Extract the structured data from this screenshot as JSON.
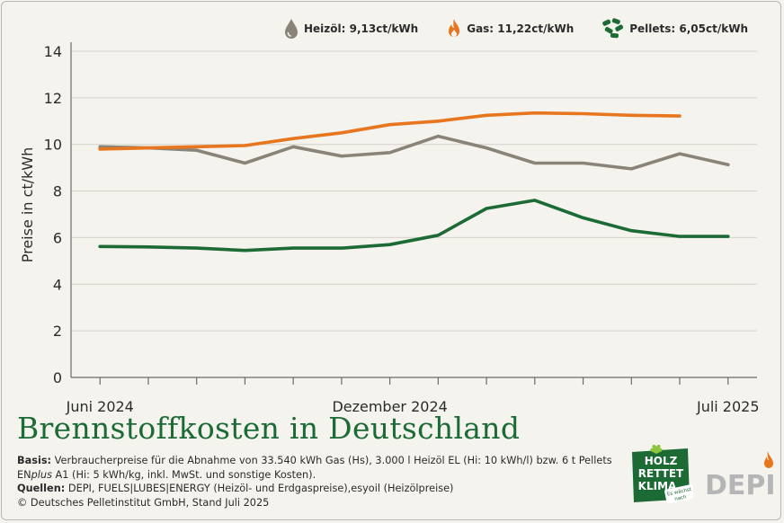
{
  "legend": [
    {
      "label": "Heizöl: 9,13ct/kWh",
      "icon": "oil-drop-icon",
      "color": "#8a8478"
    },
    {
      "label": "Gas: 11,22ct/kWh",
      "icon": "flame-icon",
      "color": "#e8761f"
    },
    {
      "label": "Pellets: 6,05ct/kWh",
      "icon": "pellets-icon",
      "color": "#1c6b35"
    }
  ],
  "chart_data": {
    "type": "line",
    "ylabel": "Preise in ct/kWh",
    "xlabel": "",
    "ylim": [
      0,
      14
    ],
    "yticks": [
      0,
      2,
      4,
      6,
      8,
      10,
      12,
      14
    ],
    "x_range": [
      -0.6,
      13.6
    ],
    "x_ticks": [
      0,
      1,
      2,
      3,
      4,
      5,
      6,
      7,
      8,
      9,
      10,
      11,
      12,
      13
    ],
    "x_tick_labels": [
      {
        "x": 0,
        "label": "Juni 2024"
      },
      {
        "x": 6,
        "label": "Dezember 2024"
      },
      {
        "x": 13,
        "label": "Juli 2025"
      }
    ],
    "grid": true,
    "series": [
      {
        "name": "Heizöl",
        "color": "#8a8478",
        "x": [
          0,
          1,
          2,
          3,
          4,
          5,
          6,
          7,
          8,
          9,
          10,
          11,
          12,
          13
        ],
        "values": [
          9.9,
          9.85,
          9.75,
          9.2,
          9.9,
          9.5,
          9.65,
          10.35,
          9.85,
          9.2,
          9.2,
          8.95,
          9.6,
          9.13
        ]
      },
      {
        "name": "Gas",
        "color": "#e8761f",
        "x": [
          0,
          1,
          2,
          3,
          4,
          5,
          6,
          7,
          8,
          9,
          10,
          11,
          12
        ],
        "values": [
          9.8,
          9.85,
          9.9,
          9.95,
          10.25,
          10.5,
          10.85,
          11.0,
          11.25,
          11.35,
          11.32,
          11.25,
          11.22
        ]
      },
      {
        "name": "Pellets",
        "color": "#1c6b35",
        "x": [
          0,
          1,
          2,
          3,
          4,
          5,
          6,
          7,
          8,
          9,
          10,
          11,
          12,
          13
        ],
        "values": [
          5.62,
          5.6,
          5.55,
          5.45,
          5.55,
          5.55,
          5.7,
          6.1,
          7.25,
          7.6,
          6.85,
          6.3,
          6.05,
          6.05
        ]
      }
    ]
  },
  "title": "Brennstoffkosten in Deutschland",
  "footnote": {
    "basis_label": "Basis:",
    "basis_text_1": " Verbraucherpreise für die Abnahme von 33.540 kWh Gas (Hs), 3.000 l Heizöl EL (Hi: 10 kWh/l) bzw. 6 t Pellets",
    "basis_text_2a": "EN",
    "basis_text_2b": "plus",
    "basis_text_2c": " A1 (Hi: 5 kWh/kg, inkl. MwSt. und sonstige Kosten).",
    "sources_label": "Quellen:",
    "sources_text": " DEPI, FUELS|LUBES|ENERGY (Heizöl- und Erdgaspreise),esyoil (Heizölpreise)",
    "copyright": "© Deutsches Pelletinstitut GmbH, Stand Juli 2025"
  },
  "logos": {
    "hrk": {
      "line1": "HOLZ",
      "line2": "RETTET",
      "line3": "KLIMA",
      "tag1": "Es wächst",
      "tag2": "nach",
      "bg": "#1c6b35"
    },
    "depi": {
      "text": "DEPI",
      "color": "#b5b5b5",
      "flame": "#e8761f"
    }
  }
}
